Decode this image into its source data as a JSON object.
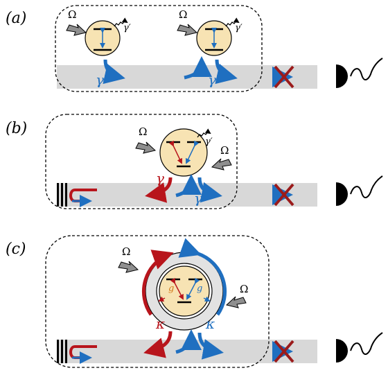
{
  "panels": {
    "a": {
      "label": "(a)"
    },
    "b": {
      "label": "(b)"
    },
    "c": {
      "label": "(c)"
    }
  },
  "symbols": {
    "drive": "Ω",
    "loss": "γ′",
    "decay": "γ",
    "cavity_decay": "κ",
    "coupling": "g"
  },
  "colors": {
    "blue": "#1f6fc0",
    "red": "#b8151c",
    "atom_fill": "#f7e3b3",
    "waveguide": "#d8d8d8",
    "drive_arrow": "#8f8f8f",
    "cross": "#9b1b1b"
  },
  "icons": [
    "detector-icon",
    "mirror-icon",
    "cross-icon",
    "drive-arrow-icon",
    "wavy-loss-arrow-icon"
  ]
}
